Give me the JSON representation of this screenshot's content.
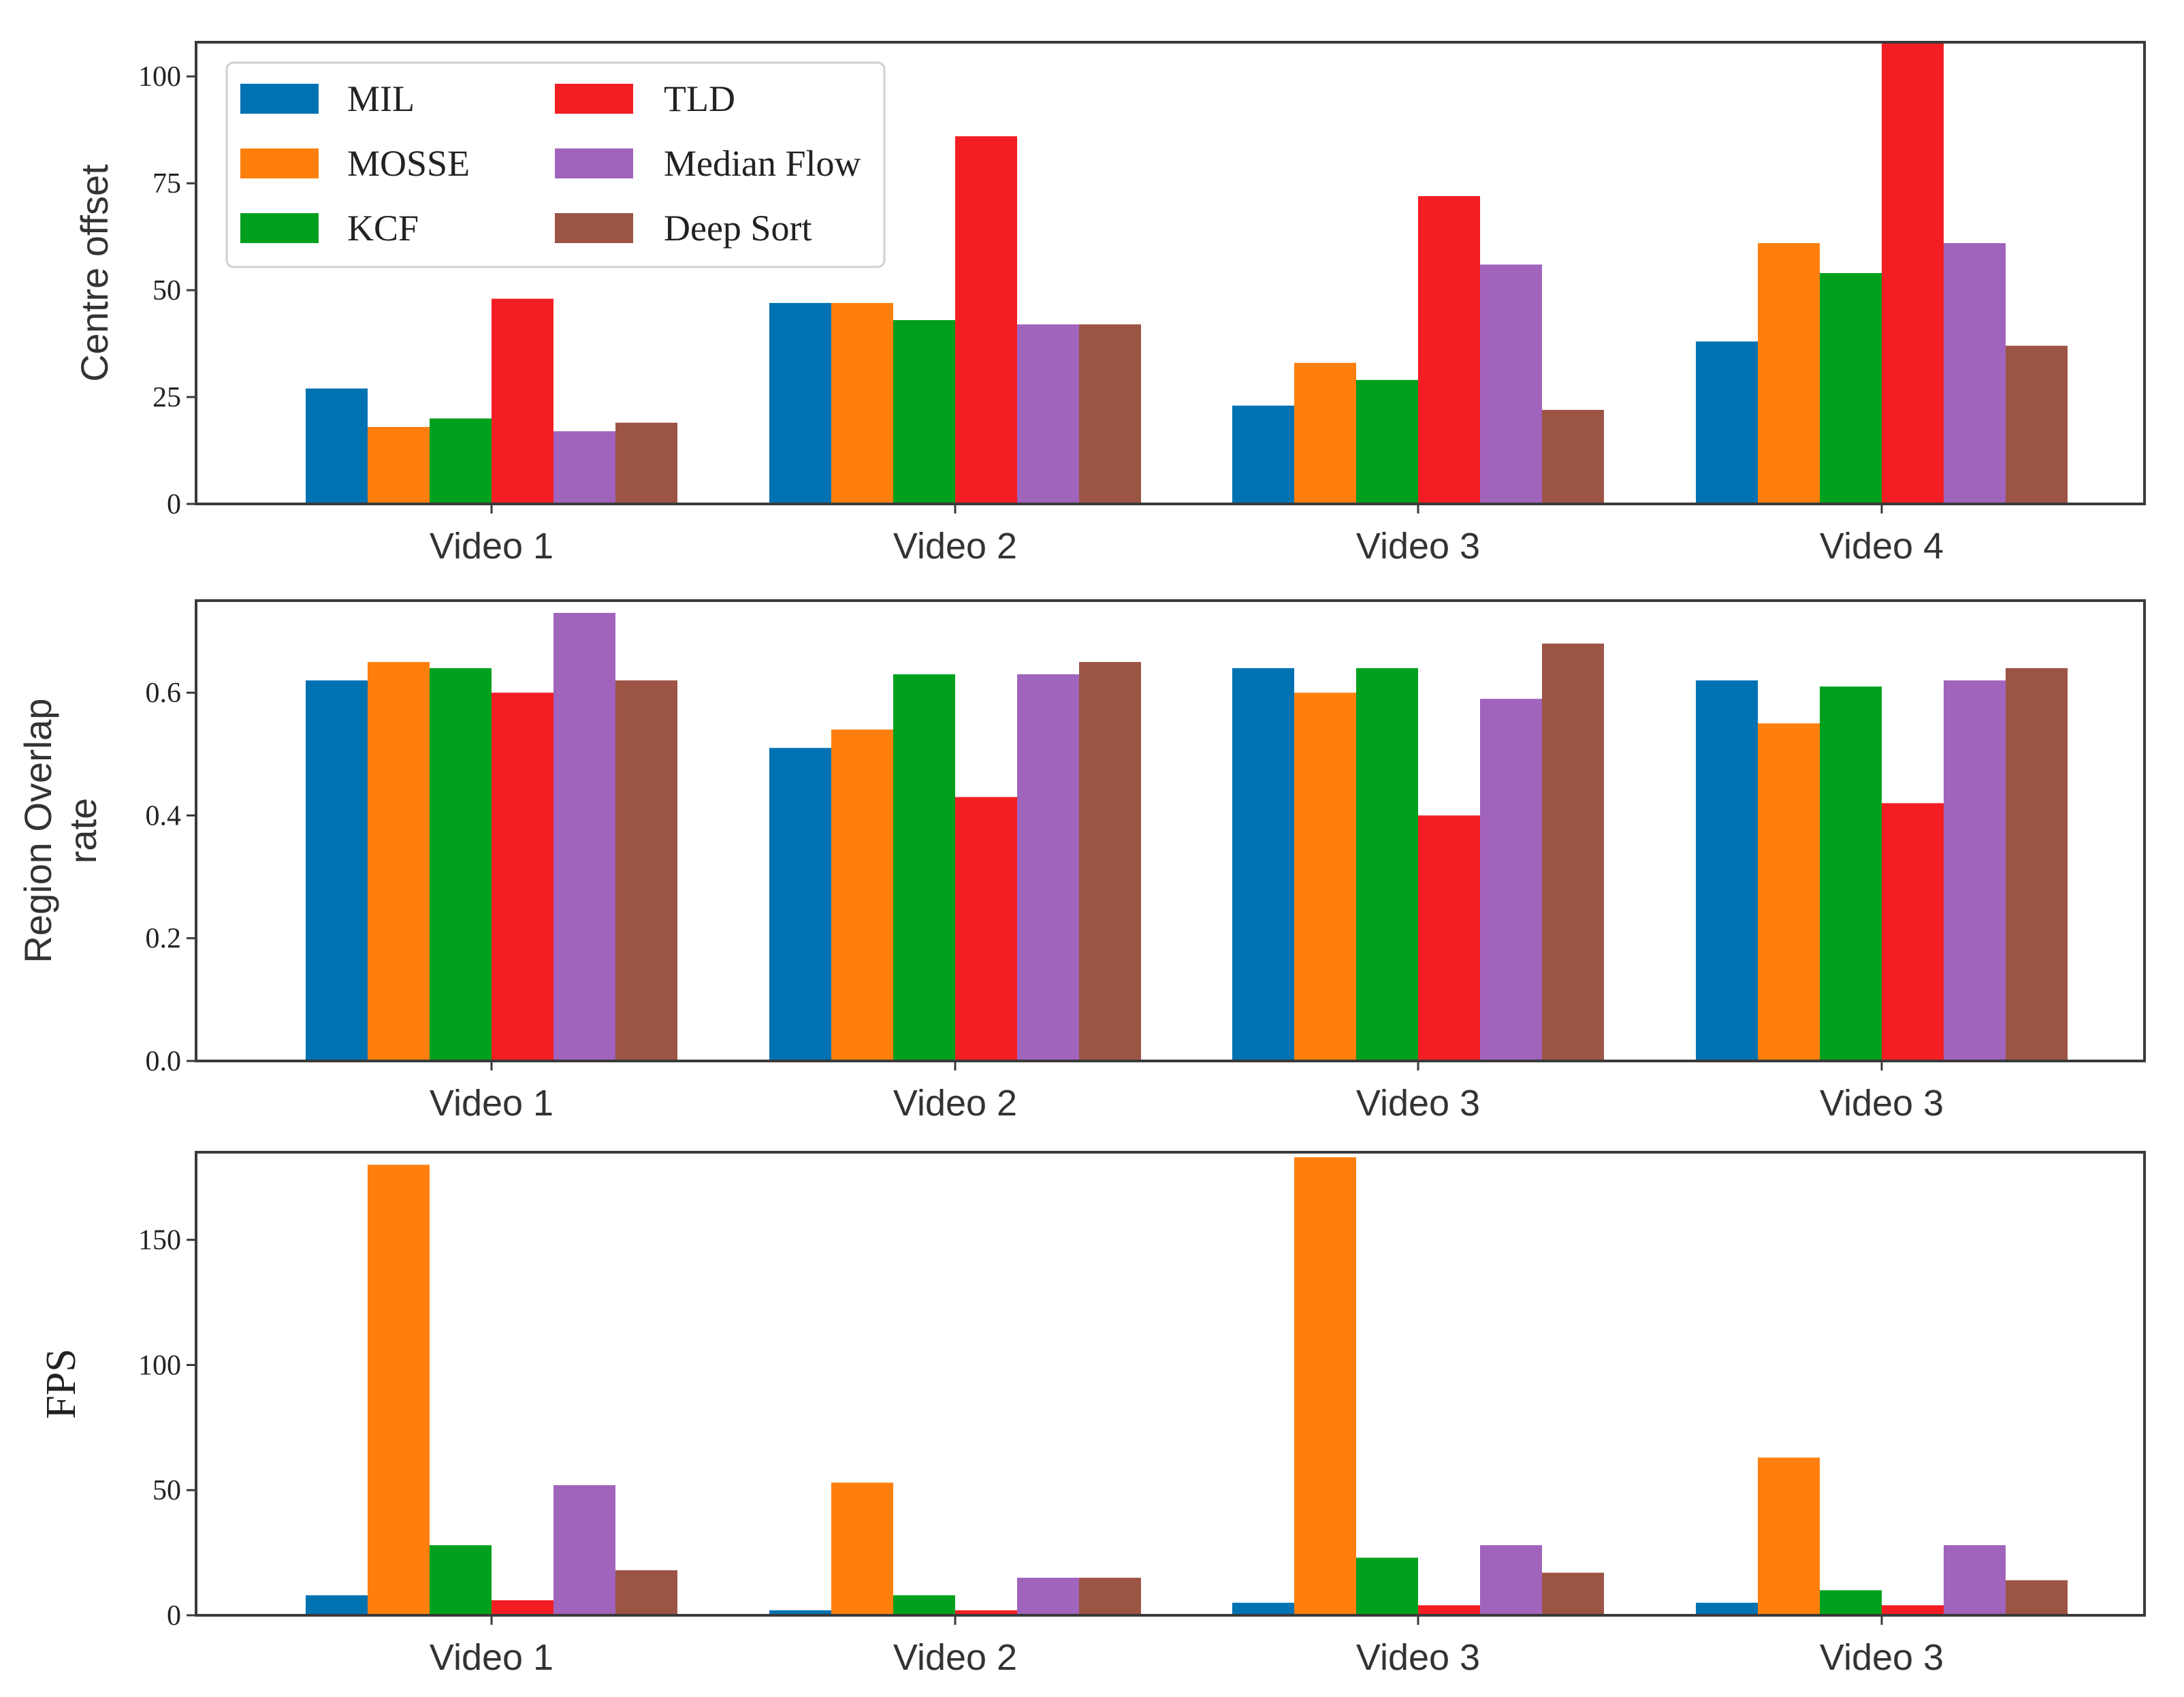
{
  "series_colors": {
    "MIL": "#0072b2",
    "MOSSE": "#ff7f0e",
    "KCF": "#00a01e",
    "TLD": "#f21e23",
    "Median Flow": "#a064bc",
    "Deep Sort": "#9c5445"
  },
  "legend": {
    "entries": [
      "MIL",
      "TLD",
      "MOSSE",
      "Median Flow",
      "KCF",
      "Deep Sort"
    ]
  },
  "chart_data": [
    {
      "type": "bar",
      "title": "",
      "ylabel": "Centre offset",
      "xlabel": "",
      "ylim": [
        0,
        108
      ],
      "yticks": [
        "0",
        "25",
        "50",
        "75",
        "100"
      ],
      "categories": [
        "Video 1",
        "Video 2",
        "Video 3",
        "Video 4"
      ],
      "series": [
        {
          "name": "MIL",
          "values": [
            27,
            47,
            23,
            38
          ]
        },
        {
          "name": "MOSSE",
          "values": [
            18,
            47,
            33,
            61
          ]
        },
        {
          "name": "KCF",
          "values": [
            20,
            43,
            29,
            54
          ]
        },
        {
          "name": "TLD",
          "values": [
            48,
            86,
            72,
            108
          ]
        },
        {
          "name": "Median Flow",
          "values": [
            17,
            42,
            56,
            61
          ]
        },
        {
          "name": "Deep Sort",
          "values": [
            19,
            42,
            22,
            37
          ]
        }
      ]
    },
    {
      "type": "bar",
      "title": "",
      "ylabel": "Region Overlap rate",
      "ylabel_lines": [
        "Region Overlap",
        "rate"
      ],
      "xlabel": "",
      "ylim": [
        0,
        0.75
      ],
      "yticks": [
        "0.0",
        "0.2",
        "0.4",
        "0.6"
      ],
      "categories": [
        "Video 1",
        "Video 2",
        "Video 3",
        "Video 3"
      ],
      "series": [
        {
          "name": "MIL",
          "values": [
            0.62,
            0.51,
            0.64,
            0.62
          ]
        },
        {
          "name": "MOSSE",
          "values": [
            0.65,
            0.54,
            0.6,
            0.55
          ]
        },
        {
          "name": "KCF",
          "values": [
            0.64,
            0.63,
            0.64,
            0.61
          ]
        },
        {
          "name": "TLD",
          "values": [
            0.6,
            0.43,
            0.4,
            0.42
          ]
        },
        {
          "name": "Median Flow",
          "values": [
            0.73,
            0.63,
            0.59,
            0.62
          ]
        },
        {
          "name": "Deep Sort",
          "values": [
            0.62,
            0.65,
            0.68,
            0.64
          ]
        }
      ]
    },
    {
      "type": "bar",
      "title": "",
      "ylabel": "FPS",
      "xlabel": "",
      "ylim": [
        0,
        185
      ],
      "yticks": [
        "0",
        "50",
        "100",
        "150"
      ],
      "categories": [
        "Video 1",
        "Video 2",
        "Video 3",
        "Video 3"
      ],
      "series": [
        {
          "name": "MIL",
          "values": [
            8,
            2,
            5,
            5
          ]
        },
        {
          "name": "MOSSE",
          "values": [
            180,
            53,
            183,
            63
          ]
        },
        {
          "name": "KCF",
          "values": [
            28,
            8,
            23,
            10
          ]
        },
        {
          "name": "TLD",
          "values": [
            6,
            2,
            4,
            4
          ]
        },
        {
          "name": "Median Flow",
          "values": [
            52,
            15,
            28,
            28
          ]
        },
        {
          "name": "Deep Sort",
          "values": [
            18,
            15,
            17,
            14
          ]
        }
      ]
    }
  ]
}
